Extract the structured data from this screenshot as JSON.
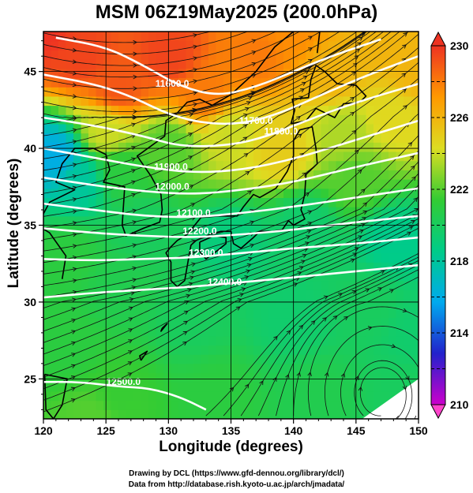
{
  "title": "MSM 06Z19May2025 (200.0hPa)",
  "credits": [
    "Drawing by DCL (https://www.gfd-dennou.org/library/dcl/)",
    "Data from http://database.rish.kyoto-u.ac.jp/arch/jmadata/"
  ],
  "chart_data": {
    "type": "heatmap",
    "title": "MSM 06Z19May2025 (200.0hPa)",
    "xlabel": "Longitude (degrees)",
    "ylabel": "Latitude  (degrees)",
    "xlim": [
      120,
      150
    ],
    "ylim": [
      22.4,
      47.6
    ],
    "xticks": [
      120,
      125,
      130,
      135,
      140,
      145,
      150
    ],
    "yticks": [
      25,
      30,
      35,
      40,
      45
    ],
    "grid": true,
    "colorbar": {
      "position": "right",
      "range": [
        210,
        230
      ],
      "ticks": [
        210,
        214,
        218,
        222,
        226,
        230
      ],
      "extend": "both",
      "colors": [
        "#cc00cc",
        "#2222cc",
        "#00aaee",
        "#00cc88",
        "#33cc33",
        "#dddd22",
        "#ff9900",
        "#ee3322"
      ]
    },
    "contour_labels": [
      {
        "text": "11600.0",
        "lon": 130.3,
        "lat": 44.0
      },
      {
        "text": "11700.0",
        "lon": 137.0,
        "lat": 41.6
      },
      {
        "text": "11800.0",
        "lon": 139.0,
        "lat": 40.9
      },
      {
        "text": "11900.0",
        "lon": 130.2,
        "lat": 38.6
      },
      {
        "text": "12000.0",
        "lon": 130.3,
        "lat": 37.3
      },
      {
        "text": "12100.0",
        "lon": 132.0,
        "lat": 35.6
      },
      {
        "text": "12200.0",
        "lon": 132.5,
        "lat": 34.4
      },
      {
        "text": "12300.0",
        "lon": 133.0,
        "lat": 33.0
      },
      {
        "text": "12400.0",
        "lon": 134.5,
        "lat": 31.1
      },
      {
        "text": "12500.0",
        "lon": 126.4,
        "lat": 24.6
      }
    ],
    "contours": [
      {
        "level": 11600,
        "points": [
          [
            121,
            47.2
          ],
          [
            125,
            46.6
          ],
          [
            128,
            45.4
          ],
          [
            131,
            44.0
          ],
          [
            134,
            43.4
          ],
          [
            137,
            44.0
          ],
          [
            140,
            45.0
          ],
          [
            143,
            46.0
          ],
          [
            147,
            47.1
          ]
        ]
      },
      {
        "level": 11700,
        "points": [
          [
            120,
            44.8
          ],
          [
            124,
            44.2
          ],
          [
            127,
            43.4
          ],
          [
            130,
            42.2
          ],
          [
            133,
            41.6
          ],
          [
            136,
            41.6
          ],
          [
            139,
            42.3
          ],
          [
            142,
            43.4
          ],
          [
            146,
            44.8
          ],
          [
            150,
            46.0
          ]
        ]
      },
      {
        "level": 11800,
        "points": [
          [
            120,
            42.0
          ],
          [
            124,
            41.5
          ],
          [
            128,
            40.8
          ],
          [
            131,
            40.1
          ],
          [
            135,
            40.2
          ],
          [
            138,
            40.8
          ],
          [
            141,
            41.8
          ],
          [
            145,
            43.0
          ],
          [
            150,
            44.2
          ]
        ]
      },
      {
        "level": 11900,
        "points": [
          [
            120,
            40.0
          ],
          [
            124,
            39.4
          ],
          [
            128,
            38.8
          ],
          [
            132,
            38.4
          ],
          [
            136,
            38.6
          ],
          [
            140,
            39.3
          ],
          [
            144,
            40.3
          ],
          [
            150,
            41.8
          ]
        ]
      },
      {
        "level": 12000,
        "points": [
          [
            120,
            38.1
          ],
          [
            124,
            37.6
          ],
          [
            128,
            37.2
          ],
          [
            132,
            37.0
          ],
          [
            136,
            37.3
          ],
          [
            140,
            37.8
          ],
          [
            144,
            38.6
          ],
          [
            150,
            39.7
          ]
        ]
      },
      {
        "level": 12100,
        "points": [
          [
            120,
            36.4
          ],
          [
            124,
            36.0
          ],
          [
            128,
            35.6
          ],
          [
            132,
            35.5
          ],
          [
            136,
            35.8
          ],
          [
            140,
            36.2
          ],
          [
            145,
            36.8
          ],
          [
            150,
            37.4
          ]
        ]
      },
      {
        "level": 12200,
        "points": [
          [
            120,
            34.8
          ],
          [
            124,
            34.5
          ],
          [
            128,
            34.3
          ],
          [
            132,
            34.2
          ],
          [
            136,
            34.4
          ],
          [
            140,
            34.7
          ],
          [
            145,
            35.2
          ],
          [
            150,
            35.6
          ]
        ]
      },
      {
        "level": 12300,
        "points": [
          [
            120,
            32.8
          ],
          [
            124,
            32.7
          ],
          [
            128,
            32.8
          ],
          [
            132,
            32.9
          ],
          [
            136,
            33.2
          ],
          [
            140,
            33.5
          ],
          [
            145,
            33.8
          ],
          [
            150,
            34.2
          ]
        ]
      },
      {
        "level": 12400,
        "points": [
          [
            120,
            30.3
          ],
          [
            124,
            30.6
          ],
          [
            128,
            30.8
          ],
          [
            132,
            31.0
          ],
          [
            136,
            31.3
          ],
          [
            140,
            31.6
          ],
          [
            145,
            32.0
          ],
          [
            150,
            32.4
          ]
        ]
      },
      {
        "level": 12500,
        "points": [
          [
            120,
            24.8
          ],
          [
            123,
            24.8
          ],
          [
            126,
            24.5
          ],
          [
            128.5,
            24.4
          ],
          [
            131,
            23.8
          ],
          [
            133,
            23.0
          ]
        ]
      }
    ],
    "temperature_anchors": [
      {
        "lon": 120,
        "lat": 47.6,
        "t": 230
      },
      {
        "lon": 123,
        "lat": 46,
        "t": 229.5
      },
      {
        "lon": 126,
        "lat": 44,
        "t": 229
      },
      {
        "lon": 130,
        "lat": 46,
        "t": 229.5
      },
      {
        "lon": 133,
        "lat": 43.5,
        "t": 228
      },
      {
        "lon": 137,
        "lat": 46,
        "t": 228
      },
      {
        "lon": 140,
        "lat": 47.6,
        "t": 227.5
      },
      {
        "lon": 143,
        "lat": 45,
        "t": 226
      },
      {
        "lon": 147,
        "lat": 47,
        "t": 226
      },
      {
        "lon": 150,
        "lat": 45,
        "t": 226
      },
      {
        "lon": 125,
        "lat": 41,
        "t": 224
      },
      {
        "lon": 121,
        "lat": 39.5,
        "t": 216
      },
      {
        "lon": 123,
        "lat": 38,
        "t": 218
      },
      {
        "lon": 126,
        "lat": 38.5,
        "t": 221
      },
      {
        "lon": 130,
        "lat": 40,
        "t": 222
      },
      {
        "lon": 135,
        "lat": 41,
        "t": 224
      },
      {
        "lon": 139,
        "lat": 40,
        "t": 225
      },
      {
        "lon": 144,
        "lat": 41,
        "t": 223.5
      },
      {
        "lon": 148,
        "lat": 42,
        "t": 224.5
      },
      {
        "lon": 145,
        "lat": 38,
        "t": 222
      },
      {
        "lon": 128,
        "lat": 35,
        "t": 220
      },
      {
        "lon": 135,
        "lat": 34,
        "t": 219
      },
      {
        "lon": 141,
        "lat": 35,
        "t": 219.5
      },
      {
        "lon": 148,
        "lat": 34,
        "t": 218.5
      },
      {
        "lon": 122,
        "lat": 33,
        "t": 221
      },
      {
        "lon": 126,
        "lat": 31,
        "t": 220.5
      },
      {
        "lon": 132,
        "lat": 29,
        "t": 220
      },
      {
        "lon": 140,
        "lat": 29,
        "t": 219.5
      },
      {
        "lon": 146,
        "lat": 30,
        "t": 220
      },
      {
        "lon": 122,
        "lat": 27,
        "t": 221
      },
      {
        "lon": 126,
        "lat": 24,
        "t": 221.5
      },
      {
        "lon": 134,
        "lat": 24,
        "t": 221
      },
      {
        "lon": 142,
        "lat": 24,
        "t": 220.5
      },
      {
        "lon": 149,
        "lat": 24,
        "t": 220
      },
      {
        "lon": 124,
        "lat": 22.4,
        "t": 222
      },
      {
        "lon": 150,
        "lat": 28,
        "t": 219.5
      }
    ],
    "wind_field": {
      "style": "streamlines",
      "color": "#000000",
      "description_points": [
        {
          "lon": 125,
          "lat": 45,
          "u": 1.0,
          "v": 0.25
        },
        {
          "lon": 140,
          "lat": 40,
          "u": 1.0,
          "v": 0.35
        },
        {
          "lon": 135,
          "lat": 33,
          "u": 1.0,
          "v": 0.1
        },
        {
          "lon": 145,
          "lat": 27,
          "u": 0.6,
          "v": -0.4
        },
        {
          "lon": 128,
          "lat": 25,
          "u": 1.0,
          "v": 0.05
        }
      ]
    }
  }
}
